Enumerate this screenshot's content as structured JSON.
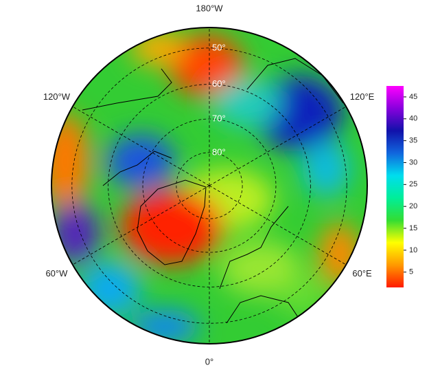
{
  "map": {
    "meridians": [
      {
        "value": -180,
        "label": "180°W"
      },
      {
        "value": -120,
        "label": "120°W"
      },
      {
        "value": -60,
        "label": "60°W"
      },
      {
        "value": 0,
        "label": "0°"
      },
      {
        "value": 60,
        "label": "60°E"
      },
      {
        "value": 120,
        "label": "120°E"
      }
    ],
    "parallels": [
      {
        "value": 50,
        "label": "50°"
      },
      {
        "value": 60,
        "label": "60°"
      },
      {
        "value": 70,
        "label": "70°"
      },
      {
        "value": 80,
        "label": "80°"
      }
    ],
    "colorbar": {
      "lim": [
        1.5,
        47.5
      ],
      "ticks": [
        5,
        10,
        15,
        20,
        25,
        30,
        35,
        40,
        45
      ],
      "colormap": [
        "#ff1a00",
        "#ff9900",
        "#ffff00",
        "#33dd33",
        "#00ee99",
        "#00ddee",
        "#1166dd",
        "#1111aa",
        "#8800dd",
        "#ff00ff"
      ]
    }
  }
}
